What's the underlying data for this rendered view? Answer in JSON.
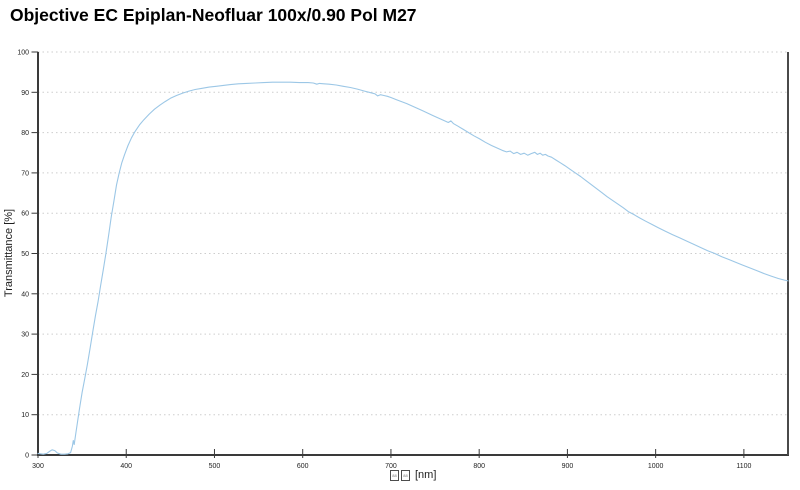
{
  "header": {
    "title": "Objective EC Epiplan-Neofluar 100x/0.90 Pol M27"
  },
  "axes": {
    "y_label": "Transmittance [%]",
    "x_label_missing_glyph_boxes": 2,
    "x_unit_label": "[nm]"
  },
  "colors": {
    "background": "#ffffff",
    "curve": "#9cc7e6",
    "grid": "#cdcdcd",
    "axis": "#3a3a3a",
    "text": "#1e1e1e"
  },
  "chart_data": {
    "type": "line",
    "title": "Objective EC Epiplan-Neofluar 100x/0.90 Pol M27",
    "xlabel": "□□ [nm]",
    "ylabel": "Transmittance [%]",
    "xlim": [
      300,
      1150
    ],
    "ylim": [
      0,
      100
    ],
    "x_ticks": [
      300,
      400,
      500,
      600,
      700,
      800,
      900,
      1000,
      1100
    ],
    "y_ticks": [
      0,
      10,
      20,
      30,
      40,
      50,
      60,
      70,
      80,
      90,
      100
    ],
    "grid": "horizontal dashed only",
    "legend": "none",
    "series": [
      {
        "name": "transmittance",
        "color": "#9cc7e6",
        "points": [
          [
            300,
            0.4
          ],
          [
            303,
            0.3
          ],
          [
            306,
            0.2
          ],
          [
            310,
            0.4
          ],
          [
            313,
            0.9
          ],
          [
            316,
            1.3
          ],
          [
            319,
            1.1
          ],
          [
            322,
            0.5
          ],
          [
            326,
            0.2
          ],
          [
            330,
            0.2
          ],
          [
            334,
            0.3
          ],
          [
            337,
            0.6
          ],
          [
            339,
            2.2
          ],
          [
            340,
            3.6
          ],
          [
            341,
            2.6
          ],
          [
            343,
            5.5
          ],
          [
            345,
            8.5
          ],
          [
            347,
            11.5
          ],
          [
            350,
            15.5
          ],
          [
            353,
            19
          ],
          [
            356,
            22.5
          ],
          [
            359,
            26.5
          ],
          [
            362,
            30.5
          ],
          [
            365,
            34.5
          ],
          [
            368,
            38
          ],
          [
            371,
            42
          ],
          [
            374,
            46
          ],
          [
            377,
            50
          ],
          [
            380,
            54.5
          ],
          [
            383,
            59
          ],
          [
            386,
            63
          ],
          [
            389,
            67
          ],
          [
            392,
            70
          ],
          [
            395,
            72.5
          ],
          [
            398,
            74.5
          ],
          [
            402,
            76.8
          ],
          [
            406,
            78.7
          ],
          [
            410,
            80.3
          ],
          [
            415,
            81.9
          ],
          [
            420,
            83.2
          ],
          [
            426,
            84.6
          ],
          [
            432,
            85.8
          ],
          [
            438,
            86.8
          ],
          [
            444,
            87.7
          ],
          [
            450,
            88.5
          ],
          [
            457,
            89.2
          ],
          [
            464,
            89.8
          ],
          [
            471,
            90.3
          ],
          [
            478,
            90.7
          ],
          [
            486,
            91.0
          ],
          [
            494,
            91.3
          ],
          [
            502,
            91.5
          ],
          [
            510,
            91.7
          ],
          [
            518,
            91.9
          ],
          [
            527,
            92.1
          ],
          [
            536,
            92.2
          ],
          [
            546,
            92.3
          ],
          [
            556,
            92.4
          ],
          [
            566,
            92.5
          ],
          [
            576,
            92.5
          ],
          [
            586,
            92.5
          ],
          [
            596,
            92.4
          ],
          [
            606,
            92.4
          ],
          [
            612,
            92.3
          ],
          [
            616,
            92.0
          ],
          [
            619,
            92.2
          ],
          [
            624,
            92.1
          ],
          [
            630,
            92.0
          ],
          [
            638,
            91.8
          ],
          [
            646,
            91.5
          ],
          [
            654,
            91.2
          ],
          [
            662,
            90.8
          ],
          [
            670,
            90.3
          ],
          [
            677,
            89.9
          ],
          [
            682,
            89.6
          ],
          [
            685,
            89.1
          ],
          [
            688,
            89.4
          ],
          [
            692,
            89.2
          ],
          [
            696,
            89.0
          ],
          [
            700,
            88.7
          ],
          [
            706,
            88.2
          ],
          [
            712,
            87.7
          ],
          [
            718,
            87.2
          ],
          [
            724,
            86.6
          ],
          [
            730,
            86.0
          ],
          [
            736,
            85.4
          ],
          [
            742,
            84.8
          ],
          [
            748,
            84.2
          ],
          [
            754,
            83.6
          ],
          [
            760,
            83.0
          ],
          [
            765,
            82.5
          ],
          [
            768,
            82.9
          ],
          [
            771,
            82.2
          ],
          [
            776,
            81.6
          ],
          [
            782,
            80.8
          ],
          [
            788,
            80.0
          ],
          [
            794,
            79.2
          ],
          [
            800,
            78.5
          ],
          [
            807,
            77.6
          ],
          [
            814,
            76.8
          ],
          [
            820,
            76.2
          ],
          [
            826,
            75.6
          ],
          [
            831,
            75.2
          ],
          [
            835,
            75.4
          ],
          [
            839,
            74.8
          ],
          [
            843,
            75.1
          ],
          [
            847,
            74.6
          ],
          [
            851,
            74.9
          ],
          [
            855,
            74.4
          ],
          [
            859,
            74.8
          ],
          [
            863,
            75.1
          ],
          [
            866,
            74.6
          ],
          [
            869,
            74.9
          ],
          [
            872,
            74.4
          ],
          [
            875,
            74.6
          ],
          [
            878,
            74.2
          ],
          [
            882,
            73.9
          ],
          [
            887,
            73.2
          ],
          [
            892,
            72.5
          ],
          [
            897,
            71.8
          ],
          [
            903,
            70.9
          ],
          [
            909,
            70.0
          ],
          [
            915,
            69.1
          ],
          [
            921,
            68.1
          ],
          [
            927,
            67.1
          ],
          [
            933,
            66.1
          ],
          [
            939,
            65.1
          ],
          [
            945,
            64.1
          ],
          [
            951,
            63.2
          ],
          [
            957,
            62.3
          ],
          [
            963,
            61.4
          ],
          [
            969,
            60.4
          ],
          [
            975,
            59.7
          ],
          [
            982,
            58.8
          ],
          [
            989,
            58.0
          ],
          [
            996,
            57.2
          ],
          [
            1003,
            56.4
          ],
          [
            1011,
            55.5
          ],
          [
            1019,
            54.7
          ],
          [
            1027,
            53.9
          ],
          [
            1035,
            53.1
          ],
          [
            1043,
            52.3
          ],
          [
            1051,
            51.5
          ],
          [
            1059,
            50.7
          ],
          [
            1067,
            50.0
          ],
          [
            1075,
            49.2
          ],
          [
            1083,
            48.5
          ],
          [
            1091,
            47.8
          ],
          [
            1099,
            47.1
          ],
          [
            1107,
            46.4
          ],
          [
            1115,
            45.7
          ],
          [
            1123,
            45.0
          ],
          [
            1131,
            44.4
          ],
          [
            1139,
            43.8
          ],
          [
            1146,
            43.4
          ],
          [
            1150,
            43.2
          ]
        ]
      }
    ]
  }
}
